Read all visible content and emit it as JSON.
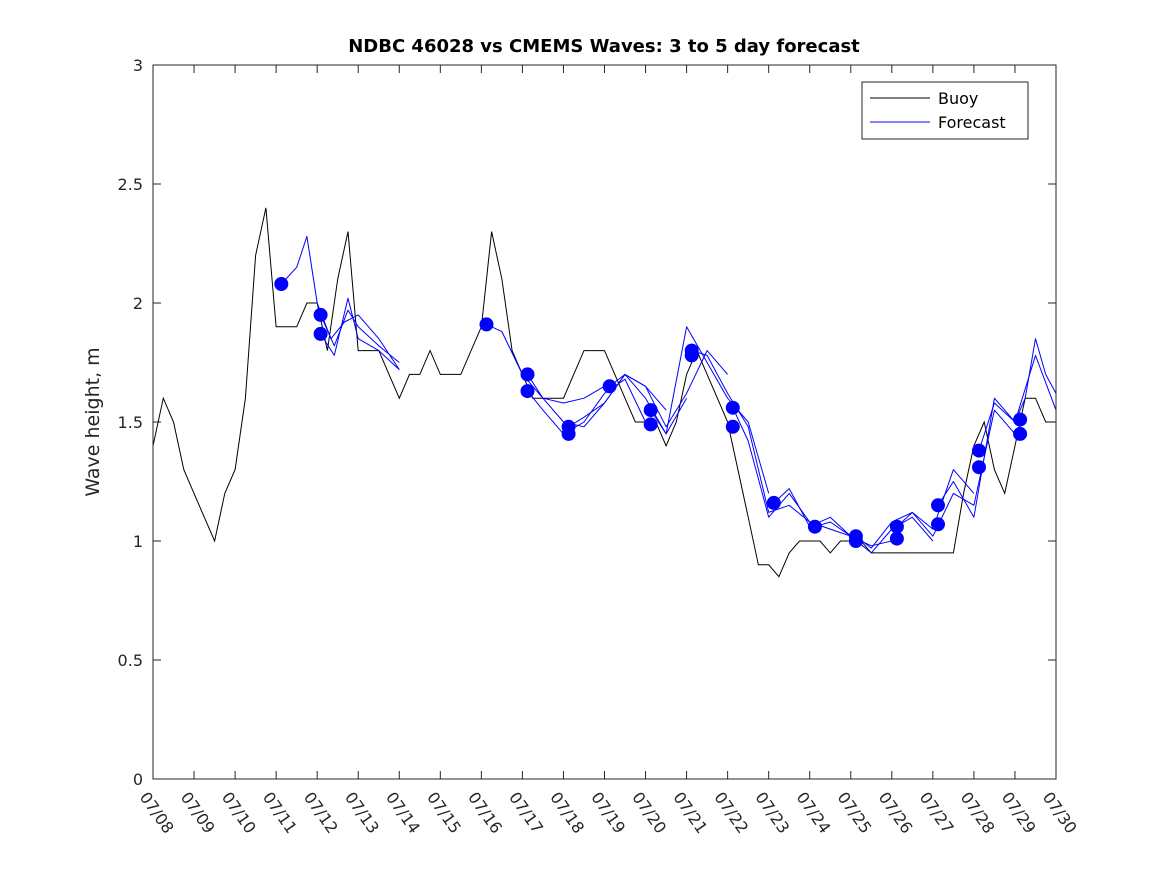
{
  "chart_data": {
    "type": "line",
    "title": "NDBC 46028 vs CMEMS Waves: 3 to 5 day forecast",
    "xlabel": "",
    "ylabel": "Wave height, m",
    "xlim": [
      "07/08",
      "07/30"
    ],
    "ylim": [
      0,
      3
    ],
    "x_ticks": [
      "07/08",
      "07/09",
      "07/10",
      "07/11",
      "07/12",
      "07/13",
      "07/14",
      "07/15",
      "07/16",
      "07/17",
      "07/18",
      "07/19",
      "07/20",
      "07/21",
      "07/22",
      "07/23",
      "07/24",
      "07/25",
      "07/26",
      "07/27",
      "07/28",
      "07/29",
      "07/30"
    ],
    "y_ticks": [
      "0",
      "0.5",
      "1",
      "1.5",
      "2",
      "2.5",
      "3"
    ],
    "grid": false,
    "legend": {
      "placement": "top-right",
      "entries": [
        "Buoy",
        "Forecast"
      ]
    },
    "colors": {
      "buoy": "#000000",
      "forecast": "#0000ff",
      "marker": "#0000ff"
    },
    "series": [
      {
        "name": "Buoy",
        "style": "line",
        "x": [
          "07/08 00:00",
          "07/08 06:00",
          "07/08 12:00",
          "07/08 18:00",
          "07/09 00:00",
          "07/09 06:00",
          "07/09 12:00",
          "07/09 18:00",
          "07/10 00:00",
          "07/10 06:00",
          "07/10 12:00",
          "07/10 18:00",
          "07/11 00:00",
          "07/11 06:00",
          "07/11 12:00",
          "07/11 18:00",
          "07/12 00:00",
          "07/12 06:00",
          "07/12 12:00",
          "07/12 18:00",
          "07/13 00:00",
          "07/13 06:00",
          "07/13 12:00",
          "07/13 18:00",
          "07/14 00:00",
          "07/14 06:00",
          "07/14 12:00",
          "07/14 18:00",
          "07/15 00:00",
          "07/15 06:00",
          "07/15 12:00",
          "07/15 18:00",
          "07/16 00:00",
          "07/16 06:00",
          "07/16 12:00",
          "07/16 18:00",
          "07/17 00:00",
          "07/17 06:00",
          "07/17 12:00",
          "07/17 18:00",
          "07/18 00:00",
          "07/18 06:00",
          "07/18 12:00",
          "07/18 18:00",
          "07/19 00:00",
          "07/19 06:00",
          "07/19 12:00",
          "07/19 18:00",
          "07/20 00:00",
          "07/20 06:00",
          "07/20 12:00",
          "07/20 18:00",
          "07/21 00:00",
          "07/21 06:00",
          "07/21 12:00",
          "07/21 18:00",
          "07/22 00:00",
          "07/22 06:00",
          "07/22 12:00",
          "07/22 18:00",
          "07/23 00:00",
          "07/23 06:00",
          "07/23 12:00",
          "07/23 18:00",
          "07/24 00:00",
          "07/24 06:00",
          "07/24 12:00",
          "07/24 18:00",
          "07/25 00:00",
          "07/25 06:00",
          "07/25 12:00",
          "07/25 18:00",
          "07/26 00:00",
          "07/26 06:00",
          "07/26 12:00",
          "07/26 18:00",
          "07/27 00:00",
          "07/27 06:00",
          "07/27 12:00",
          "07/27 18:00",
          "07/28 00:00",
          "07/28 06:00",
          "07/28 12:00",
          "07/28 18:00",
          "07/29 00:00",
          "07/29 06:00",
          "07/29 12:00",
          "07/29 18:00",
          "07/30 00:00"
        ],
        "values": [
          1.4,
          1.6,
          1.5,
          1.3,
          1.2,
          1.1,
          1.0,
          1.2,
          1.3,
          1.6,
          2.2,
          2.4,
          1.9,
          1.9,
          1.9,
          2.0,
          2.0,
          1.8,
          2.1,
          2.3,
          1.8,
          1.8,
          1.8,
          1.7,
          1.6,
          1.7,
          1.7,
          1.8,
          1.7,
          1.7,
          1.7,
          1.8,
          1.9,
          2.3,
          2.1,
          1.8,
          1.7,
          1.6,
          1.6,
          1.6,
          1.6,
          1.7,
          1.8,
          1.8,
          1.8,
          1.7,
          1.6,
          1.5,
          1.5,
          1.5,
          1.4,
          1.5,
          1.7,
          1.8,
          1.7,
          1.6,
          1.5,
          1.3,
          1.1,
          0.9,
          0.9,
          0.85,
          0.95,
          1.0,
          1.0,
          1.0,
          0.95,
          1.0,
          1.0,
          1.0,
          0.95,
          0.95,
          0.95,
          0.95,
          0.95,
          0.95,
          0.95,
          0.95,
          0.95,
          1.2,
          1.4,
          1.5,
          1.3,
          1.2,
          1.4,
          1.6,
          1.6,
          1.5,
          1.5
        ]
      },
      {
        "name": "Forecast",
        "style": "line",
        "runs": [
          {
            "x": [
              "07/11 03:00",
              "07/11 12:00",
              "07/11 18:00",
              "07/12 00:00",
              "07/12 08:00",
              "07/12 16:00",
              "07/13 00:00",
              "07/13 12:00",
              "07/14 00:00"
            ],
            "values": [
              2.08,
              2.15,
              2.28,
              2.0,
              1.85,
              1.92,
              1.95,
              1.85,
              1.72
            ]
          },
          {
            "x": [
              "07/12 02:00",
              "07/12 10:00",
              "07/12 18:00",
              "07/13 00:00",
              "07/13 12:00",
              "07/14 00:00"
            ],
            "values": [
              1.95,
              1.82,
              1.97,
              1.9,
              1.82,
              1.75
            ]
          },
          {
            "x": [
              "07/12 02:00",
              "07/12 10:00",
              "07/12 18:00",
              "07/13 00:00",
              "07/13 12:00",
              "07/14 00:00"
            ],
            "values": [
              1.87,
              1.78,
              2.02,
              1.85,
              1.8,
              1.72
            ]
          },
          {
            "x": [
              "07/16 03:00",
              "07/16 12:00",
              "07/17 00:00",
              "07/17 12:00",
              "07/18 00:00",
              "07/18 12:00",
              "07/19 00:00"
            ],
            "values": [
              1.91,
              1.88,
              1.7,
              1.6,
              1.58,
              1.6,
              1.65
            ]
          },
          {
            "x": [
              "07/17 03:00",
              "07/17 12:00",
              "07/18 00:00",
              "07/18 12:00",
              "07/19 00:00",
              "07/19 12:00",
              "07/20 00:00",
              "07/20 12:00"
            ],
            "values": [
              1.7,
              1.6,
              1.5,
              1.48,
              1.58,
              1.7,
              1.65,
              1.55
            ]
          },
          {
            "x": [
              "07/17 03:00",
              "07/17 12:00",
              "07/18 00:00",
              "07/18 12:00",
              "07/19 00:00",
              "07/19 12:00",
              "07/20 00:00"
            ],
            "values": [
              1.63,
              1.55,
              1.45,
              1.5,
              1.62,
              1.68,
              1.5
            ]
          },
          {
            "x": [
              "07/18 03:00",
              "07/18 12:00",
              "07/19 00:00",
              "07/19 12:00",
              "07/20 00:00",
              "07/20 12:00",
              "07/21 00:00"
            ],
            "values": [
              1.48,
              1.52,
              1.58,
              1.7,
              1.6,
              1.45,
              1.6
            ]
          },
          {
            "x": [
              "07/19 03:00",
              "07/19 12:00",
              "07/20 00:00",
              "07/20 12:00",
              "07/21 00:00",
              "07/21 12:00",
              "07/22 00:00"
            ],
            "values": [
              1.65,
              1.7,
              1.65,
              1.48,
              1.62,
              1.8,
              1.7
            ]
          },
          {
            "x": [
              "07/20 03:00",
              "07/20 12:00",
              "07/21 00:00",
              "07/21 12:00",
              "07/22 00:00",
              "07/22 12:00",
              "07/23 00:00"
            ],
            "values": [
              1.55,
              1.45,
              1.9,
              1.75,
              1.6,
              1.5,
              1.2
            ]
          },
          {
            "x": [
              "07/21 03:00",
              "07/21 12:00",
              "07/22 00:00",
              "07/22 12:00",
              "07/23 00:00",
              "07/23 12:00",
              "07/24 00:00"
            ],
            "values": [
              1.8,
              1.78,
              1.62,
              1.48,
              1.12,
              1.15,
              1.08
            ]
          },
          {
            "x": [
              "07/22 03:00",
              "07/22 12:00",
              "07/23 00:00",
              "07/23 12:00",
              "07/24 00:00",
              "07/24 12:00",
              "07/25 00:00"
            ],
            "values": [
              1.56,
              1.42,
              1.1,
              1.2,
              1.08,
              1.05,
              1.02
            ]
          },
          {
            "x": [
              "07/23 03:00",
              "07/23 12:00",
              "07/24 00:00",
              "07/24 12:00",
              "07/25 00:00",
              "07/25 12:00",
              "07/26 00:00"
            ],
            "values": [
              1.16,
              1.22,
              1.06,
              1.1,
              1.02,
              0.98,
              1.0
            ]
          },
          {
            "x": [
              "07/24 03:00",
              "07/24 12:00",
              "07/25 00:00",
              "07/25 12:00",
              "07/26 00:00",
              "07/26 12:00",
              "07/27 00:00"
            ],
            "values": [
              1.06,
              1.08,
              1.02,
              0.95,
              1.05,
              1.1,
              1.0
            ]
          },
          {
            "x": [
              "07/25 03:00",
              "07/25 12:00",
              "07/26 00:00",
              "07/26 12:00",
              "07/27 00:00",
              "07/27 12:00",
              "07/28 00:00"
            ],
            "values": [
              1.02,
              0.97,
              1.08,
              1.12,
              1.05,
              1.3,
              1.2
            ]
          },
          {
            "x": [
              "07/26 03:00",
              "07/26 12:00",
              "07/27 00:00",
              "07/27 12:00",
              "07/28 00:00",
              "07/28 12:00",
              "07/29 00:00"
            ],
            "values": [
              1.06,
              1.12,
              1.02,
              1.2,
              1.15,
              1.55,
              1.45
            ]
          },
          {
            "x": [
              "07/27 03:00",
              "07/27 12:00",
              "07/28 00:00",
              "07/28 12:00",
              "07/29 00:00",
              "07/29 12:00",
              "07/30 00:00"
            ],
            "values": [
              1.15,
              1.25,
              1.1,
              1.6,
              1.5,
              1.78,
              1.55
            ]
          },
          {
            "x": [
              "07/28 03:00",
              "07/28 12:00",
              "07/29 00:00",
              "07/29 06:00",
              "07/29 12:00",
              "07/29 18:00",
              "07/30 00:00"
            ],
            "values": [
              1.38,
              1.58,
              1.5,
              1.6,
              1.85,
              1.7,
              1.62
            ]
          }
        ]
      },
      {
        "name": "",
        "style": "marker",
        "x": [
          "07/11 03:00",
          "07/12 02:00",
          "07/12 02:00",
          "07/16 03:00",
          "07/17 03:00",
          "07/17 03:00",
          "07/18 03:00",
          "07/18 03:00",
          "07/19 03:00",
          "07/20 03:00",
          "07/20 03:00",
          "07/21 03:00",
          "07/21 03:00",
          "07/22 03:00",
          "07/22 03:00",
          "07/23 03:00",
          "07/24 03:00",
          "07/25 03:00",
          "07/25 03:00",
          "07/26 03:00",
          "07/26 03:00",
          "07/27 03:00",
          "07/27 03:00",
          "07/28 03:00",
          "07/28 03:00",
          "07/29 03:00",
          "07/29 03:00"
        ],
        "values": [
          2.08,
          1.95,
          1.87,
          1.91,
          1.7,
          1.63,
          1.48,
          1.45,
          1.65,
          1.55,
          1.49,
          1.8,
          1.78,
          1.56,
          1.48,
          1.16,
          1.06,
          1.02,
          1.0,
          1.06,
          1.01,
          1.15,
          1.07,
          1.38,
          1.31,
          1.51,
          1.45
        ]
      }
    ]
  }
}
